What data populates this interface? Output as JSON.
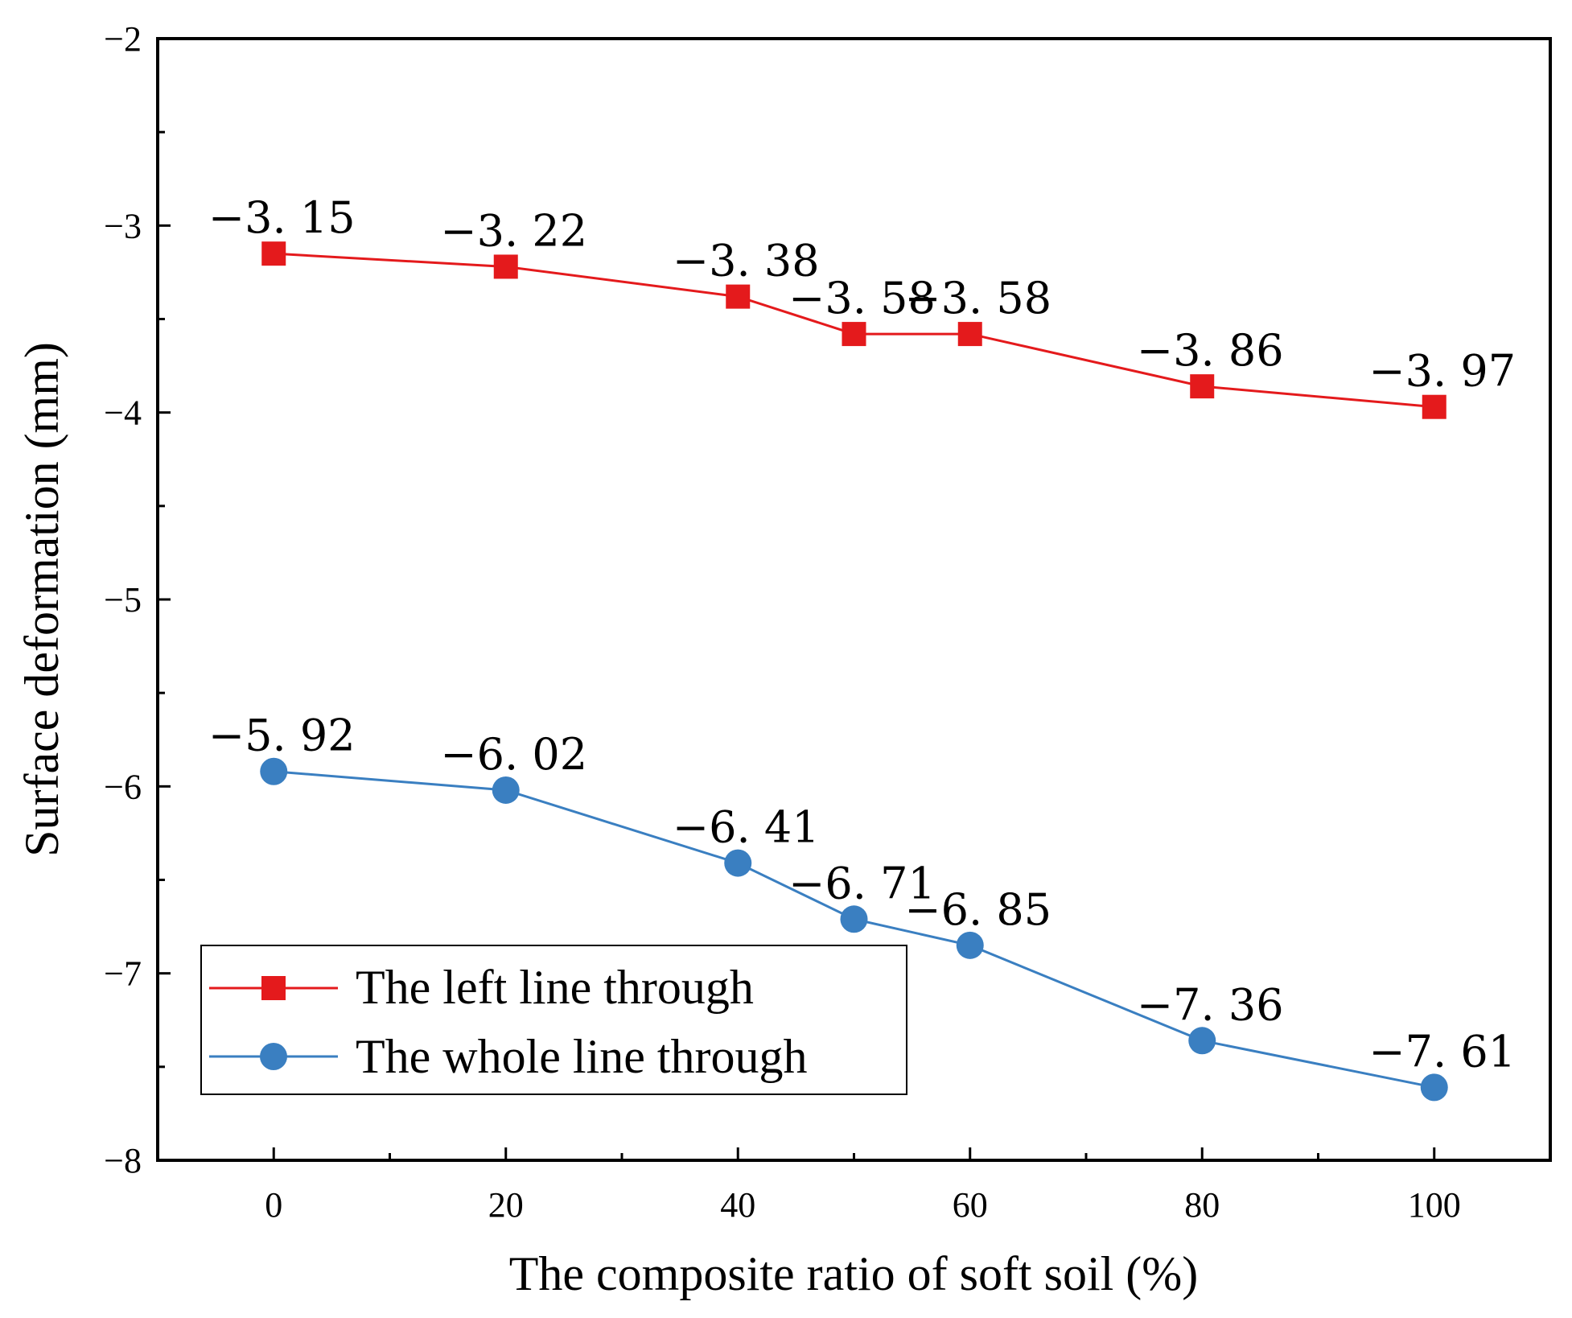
{
  "chart_data": {
    "type": "line",
    "xlabel": "The composite ratio of soft soil (%)",
    "ylabel": "Surface deformation (mm)",
    "xlim": [
      -10,
      110
    ],
    "ylim": [
      -8,
      -2
    ],
    "x_ticks": [
      0,
      20,
      40,
      60,
      80,
      100
    ],
    "x_tick_labels": [
      "0",
      "20",
      "40",
      "60",
      "80",
      "100"
    ],
    "y_ticks": [
      -2,
      -3,
      -4,
      -5,
      -6,
      -7,
      -8
    ],
    "y_tick_labels": [
      "−2",
      "−3",
      "−4",
      "−5",
      "−6",
      "−7",
      "−8"
    ],
    "x": [
      0,
      20,
      40,
      50,
      60,
      80,
      100
    ],
    "series": [
      {
        "name": "The left line through",
        "color": "#e41a1c",
        "marker": "square",
        "values": [
          -3.15,
          -3.22,
          -3.38,
          -3.58,
          -3.58,
          -3.86,
          -3.97
        ],
        "labels": [
          "−3. 15",
          "−3. 22",
          "−3. 38",
          "−3. 58",
          "−3. 58",
          "−3. 86",
          "−3. 97"
        ]
      },
      {
        "name": "The whole line through",
        "color": "#3a7fc1",
        "marker": "circle",
        "values": [
          -5.92,
          -6.02,
          -6.41,
          -6.71,
          -6.85,
          -7.36,
          -7.61
        ],
        "labels": [
          "−5. 92",
          "−6. 02",
          "−6. 41",
          "−6. 71",
          "−6. 85",
          "−7. 36",
          "−7. 61"
        ]
      }
    ],
    "legend_position": "bottom-left",
    "grid": false
  }
}
